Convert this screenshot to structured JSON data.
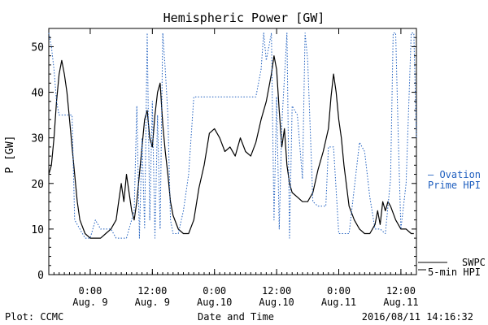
{
  "page": {
    "title": "Hemispheric Power [GW]",
    "footer_left": "Plot: CCMC",
    "footer_center": "Date and Time",
    "footer_right": "2016/08/11 14:16:32"
  },
  "legend": {
    "ovation_line1": "— Ovation",
    "ovation_line2": "Prime HPI",
    "swpc_line1": "SWPC",
    "swpc_line2": "5-min HPI"
  },
  "colors": {
    "ovation": "#1f5fbf",
    "swpc": "#000000",
    "axis": "#000000",
    "background": "#ffffff"
  },
  "chart_data": {
    "type": "line",
    "title": "Hemispheric Power [GW]",
    "xlabel": "Date and Time",
    "ylabel": "P [GW]",
    "xlim": [
      "2016-08-08 16:00",
      "2016-08-11 15:00"
    ],
    "ylim": [
      0,
      54
    ],
    "yticks": [
      0,
      10,
      20,
      30,
      40,
      50
    ],
    "xticks": [
      {
        "t": "2016-08-09 00:00",
        "label1": "0:00",
        "label2": "Aug. 9"
      },
      {
        "t": "2016-08-09 12:00",
        "label1": "12:00",
        "label2": "Aug. 9"
      },
      {
        "t": "2016-08-10 00:00",
        "label1": "0:00",
        "label2": "Aug.10"
      },
      {
        "t": "2016-08-10 12:00",
        "label1": "12:00",
        "label2": "Aug.10"
      },
      {
        "t": "2016-08-11 00:00",
        "label1": "0:00",
        "label2": "Aug.11"
      },
      {
        "t": "2016-08-11 12:00",
        "label1": "12:00",
        "label2": "Aug.11"
      }
    ],
    "grid": false,
    "legend_position": "right",
    "series": [
      {
        "name": "SWPC 5-min HPI",
        "style": "solid",
        "x": [
          "2016-08-08 16:00",
          "2016-08-08 16:30",
          "2016-08-08 17:00",
          "2016-08-08 17:30",
          "2016-08-08 18:00",
          "2016-08-08 18:30",
          "2016-08-08 19:00",
          "2016-08-08 19:30",
          "2016-08-08 20:00",
          "2016-08-08 20:30",
          "2016-08-08 21:00",
          "2016-08-08 21:30",
          "2016-08-08 22:00",
          "2016-08-08 23:00",
          "2016-08-09 00:00",
          "2016-08-09 01:00",
          "2016-08-09 02:00",
          "2016-08-09 03:00",
          "2016-08-09 04:00",
          "2016-08-09 05:00",
          "2016-08-09 05:30",
          "2016-08-09 06:00",
          "2016-08-09 06:30",
          "2016-08-09 07:00",
          "2016-08-09 07:30",
          "2016-08-09 08:00",
          "2016-08-09 08:30",
          "2016-08-09 09:00",
          "2016-08-09 09:30",
          "2016-08-09 10:00",
          "2016-08-09 10:30",
          "2016-08-09 11:00",
          "2016-08-09 11:30",
          "2016-08-09 12:00",
          "2016-08-09 12:30",
          "2016-08-09 13:00",
          "2016-08-09 13:30",
          "2016-08-09 14:00",
          "2016-08-09 14:30",
          "2016-08-09 15:00",
          "2016-08-09 15:30",
          "2016-08-09 16:00",
          "2016-08-09 17:00",
          "2016-08-09 18:00",
          "2016-08-09 19:00",
          "2016-08-09 20:00",
          "2016-08-09 21:00",
          "2016-08-09 22:00",
          "2016-08-09 23:00",
          "2016-08-10 00:00",
          "2016-08-10 01:00",
          "2016-08-10 02:00",
          "2016-08-10 03:00",
          "2016-08-10 04:00",
          "2016-08-10 05:00",
          "2016-08-10 06:00",
          "2016-08-10 07:00",
          "2016-08-10 08:00",
          "2016-08-10 09:00",
          "2016-08-10 10:00",
          "2016-08-10 11:00",
          "2016-08-10 11:30",
          "2016-08-10 12:00",
          "2016-08-10 12:30",
          "2016-08-10 13:00",
          "2016-08-10 13:30",
          "2016-08-10 14:00",
          "2016-08-10 14:30",
          "2016-08-10 15:00",
          "2016-08-10 16:00",
          "2016-08-10 17:00",
          "2016-08-10 18:00",
          "2016-08-10 19:00",
          "2016-08-10 20:00",
          "2016-08-10 21:00",
          "2016-08-10 22:00",
          "2016-08-10 22:30",
          "2016-08-10 23:00",
          "2016-08-10 23:30",
          "2016-08-11 00:00",
          "2016-08-11 00:30",
          "2016-08-11 01:00",
          "2016-08-11 02:00",
          "2016-08-11 03:00",
          "2016-08-11 04:00",
          "2016-08-11 05:00",
          "2016-08-11 06:00",
          "2016-08-11 06:30",
          "2016-08-11 07:00",
          "2016-08-11 07:30",
          "2016-08-11 08:00",
          "2016-08-11 08:30",
          "2016-08-11 09:00",
          "2016-08-11 09:30",
          "2016-08-11 10:00",
          "2016-08-11 11:00",
          "2016-08-11 12:00",
          "2016-08-11 13:00",
          "2016-08-11 14:00",
          "2016-08-11 14:30"
        ],
        "values": [
          22,
          24,
          30,
          38,
          44,
          47,
          44,
          40,
          34,
          28,
          22,
          16,
          12,
          9,
          8,
          8,
          8,
          9,
          10,
          12,
          16,
          20,
          16,
          22,
          18,
          14,
          12,
          16,
          22,
          28,
          34,
          36,
          30,
          28,
          35,
          40,
          42,
          33,
          27,
          22,
          16,
          13,
          10,
          9,
          9,
          12,
          19,
          24,
          31,
          32,
          30,
          27,
          28,
          26,
          30,
          27,
          26,
          29,
          34,
          38,
          44,
          48,
          45,
          36,
          28,
          32,
          24,
          20,
          18,
          17,
          16,
          16,
          18,
          23,
          27,
          32,
          39,
          44,
          40,
          34,
          30,
          24,
          15,
          12,
          10,
          9,
          9,
          10,
          11,
          14,
          11,
          16,
          14,
          16,
          15,
          12,
          10,
          10,
          9,
          9
        ]
      },
      {
        "name": "Ovation Prime HPI",
        "style": "dotted",
        "x": [
          "2016-08-08 16:00",
          "2016-08-08 16:30",
          "2016-08-08 17:00",
          "2016-08-08 17:30",
          "2016-08-08 18:00",
          "2016-08-08 20:30",
          "2016-08-08 21:00",
          "2016-08-08 22:00",
          "2016-08-08 23:00",
          "2016-08-09 00:00",
          "2016-08-09 01:00",
          "2016-08-09 02:00",
          "2016-08-09 04:00",
          "2016-08-09 05:00",
          "2016-08-09 07:00",
          "2016-08-09 08:30",
          "2016-08-09 09:00",
          "2016-08-09 09:30",
          "2016-08-09 10:00",
          "2016-08-09 10:30",
          "2016-08-09 11:00",
          "2016-08-09 11:30",
          "2016-08-09 12:00",
          "2016-08-09 12:30",
          "2016-08-09 13:00",
          "2016-08-09 13:30",
          "2016-08-09 14:00",
          "2016-08-09 14:30",
          "2016-08-09 15:00",
          "2016-08-09 15:30",
          "2016-08-09 16:00",
          "2016-08-09 17:00",
          "2016-08-09 18:00",
          "2016-08-09 19:00",
          "2016-08-09 20:00",
          "2016-08-09 21:00",
          "2016-08-09 22:00",
          "2016-08-10 00:00",
          "2016-08-10 02:00",
          "2016-08-10 04:00",
          "2016-08-10 06:00",
          "2016-08-10 08:00",
          "2016-08-10 09:00",
          "2016-08-10 09:30",
          "2016-08-10 10:00",
          "2016-08-10 11:00",
          "2016-08-10 11:30",
          "2016-08-10 12:00",
          "2016-08-10 12:30",
          "2016-08-10 13:00",
          "2016-08-10 14:00",
          "2016-08-10 14:30",
          "2016-08-10 15:00",
          "2016-08-10 16:00",
          "2016-08-10 17:00",
          "2016-08-10 17:30",
          "2016-08-10 18:00",
          "2016-08-10 19:00",
          "2016-08-10 20:00",
          "2016-08-10 21:00",
          "2016-08-10 21:30",
          "2016-08-10 22:00",
          "2016-08-10 23:00",
          "2016-08-11 00:00",
          "2016-08-11 02:00",
          "2016-08-11 04:00",
          "2016-08-11 05:00",
          "2016-08-11 06:00",
          "2016-08-11 07:00",
          "2016-08-11 08:00",
          "2016-08-11 09:00",
          "2016-08-11 10:00",
          "2016-08-11 10:30",
          "2016-08-11 11:00",
          "2016-08-11 11:30",
          "2016-08-11 12:00",
          "2016-08-11 13:00",
          "2016-08-11 14:00",
          "2016-08-11 14:30",
          "2016-08-11 15:00"
        ],
        "values": [
          53,
          50,
          45,
          38,
          35,
          35,
          12,
          10,
          8,
          8,
          12,
          10,
          10,
          8,
          8,
          14,
          37,
          8,
          30,
          10,
          53,
          12,
          38,
          8,
          35,
          10,
          53,
          45,
          35,
          12,
          9,
          9,
          14,
          22,
          39,
          39,
          39,
          39,
          39,
          39,
          39,
          39,
          45,
          53,
          47,
          53,
          12,
          39,
          10,
          33,
          53,
          8,
          37,
          35,
          21,
          53,
          47,
          16,
          15,
          15,
          15,
          28,
          28,
          9,
          9,
          29,
          27,
          17,
          10,
          10,
          9,
          21,
          53,
          53,
          30,
          10,
          20,
          53,
          53,
          30
        ]
      }
    ]
  }
}
